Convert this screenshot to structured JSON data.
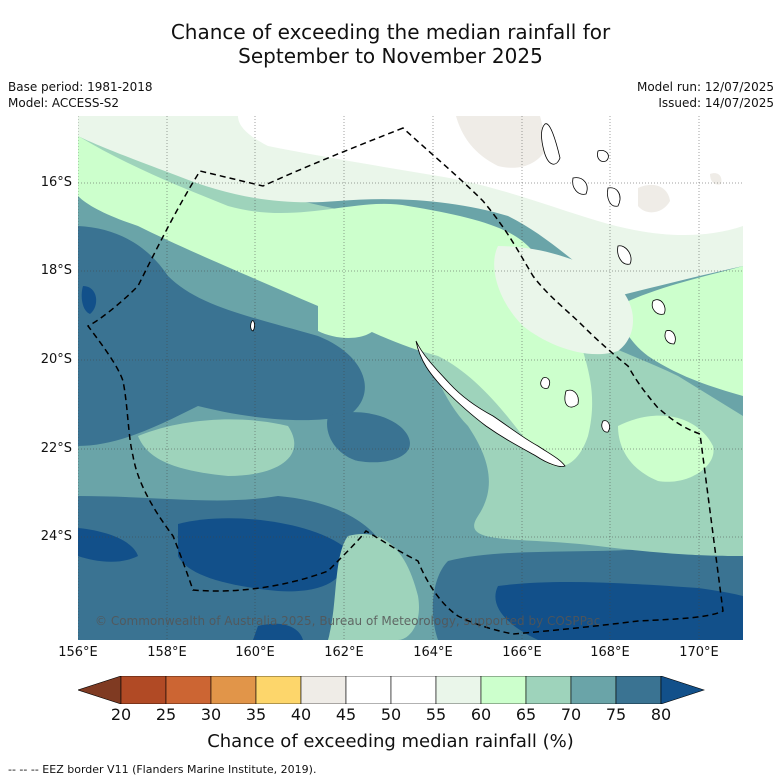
{
  "title_line1": "Chance of exceeding the median rainfall for",
  "title_line2": "September to November 2025",
  "base_period": "Base period: 1981-2018",
  "model": "Model: ACCESS-S2",
  "model_run": "Model run: 12/07/2025",
  "issued": "Issued: 14/07/2025",
  "copyright": "© Commonwealth of Australia 2025, Bureau of Meteorology, supported by COSPPac",
  "longitude_labels": [
    "156°E",
    "158°E",
    "160°E",
    "162°E",
    "164°E",
    "166°E",
    "168°E",
    "170°E"
  ],
  "latitude_labels": [
    "16°S",
    "18°S",
    "20°S",
    "22°S",
    "24°S"
  ],
  "colorbar": {
    "ticks": [
      "20",
      "25",
      "30",
      "35",
      "40",
      "45",
      "50",
      "55",
      "60",
      "65",
      "70",
      "75",
      "80"
    ],
    "title": "Chance of exceeding median rainfall (%)",
    "colors": {
      "below_20": "#7f3a22",
      "20_25": "#b14a25",
      "25_30": "#cc6533",
      "30_35": "#e19549",
      "35_40": "#fdd66b",
      "40_45": "#efece7",
      "45_50": "#ffffff",
      "50_55": "#ffffff",
      "55_60": "#eaf6ea",
      "60_65": "#ccffcc",
      "65_70": "#9ed3bb",
      "70_75": "#6aa4a8",
      "75_80": "#3a7392",
      "above_80": "#12508a"
    }
  },
  "footer": "--  --  -- EEZ border V11 (Flanders Marine Institute, 2019)."
}
